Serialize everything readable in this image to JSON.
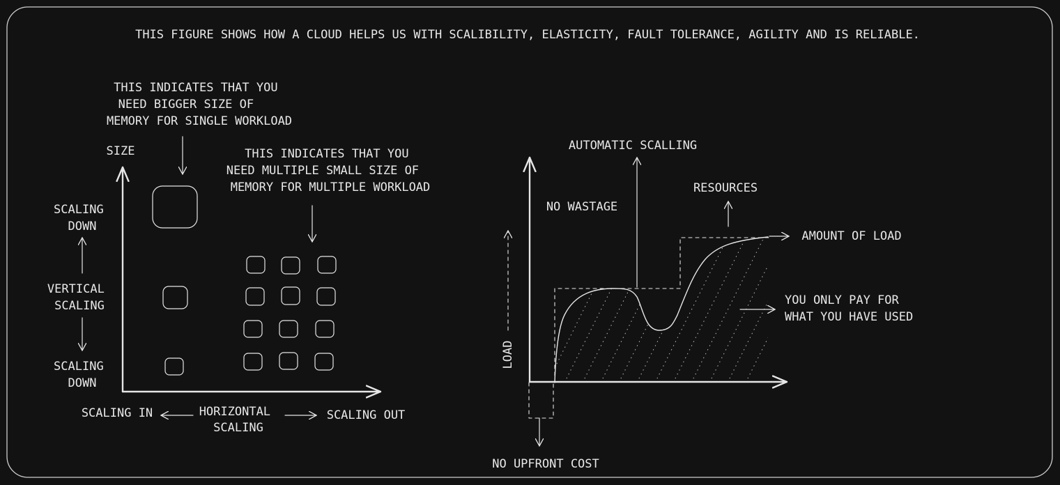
{
  "title": "THIS FIGURE SHOWS HOW A CLOUD HELPS US WITH SCALIBILITY, ELASTICITY, FAULT TOLERANCE, AGILITY AND IS RELIABLE.",
  "left": {
    "note_big": [
      "THIS INDICATES THAT YOU",
      "NEED BIGGER SIZE OF",
      "MEMORY FOR SINGLE WORKLOAD"
    ],
    "note_small": [
      "THIS INDICATES THAT YOU",
      "NEED MULTIPLE SMALL SIZE OF",
      "MEMORY FOR MULTIPLE WORKLOAD"
    ],
    "size_label": "SIZE",
    "scaling_up": [
      "SCALING",
      "DOWN"
    ],
    "vertical": [
      "VERTICAL",
      "SCALING"
    ],
    "scaling_down": [
      "SCALING",
      "DOWN"
    ],
    "scaling_in": "SCALING IN",
    "horizontal": [
      "HORIZONTAL",
      "SCALING"
    ],
    "scaling_out": "SCALING OUT"
  },
  "right": {
    "automatic": "AUTOMATIC SCALLING",
    "resources": "RESOURCES",
    "no_wastage": "NO WASTAGE",
    "amount_of_load": "AMOUNT OF LOAD",
    "pay": [
      "YOU ONLY PAY FOR",
      "WHAT YOU HAVE USED"
    ],
    "load": "LOAD",
    "no_upfront": "NO UPFRONT COST"
  },
  "colors": {
    "background": "#121212",
    "stroke": "#e6e6e6",
    "text": "#e8e8e8",
    "frame": "#cfcfcf"
  }
}
